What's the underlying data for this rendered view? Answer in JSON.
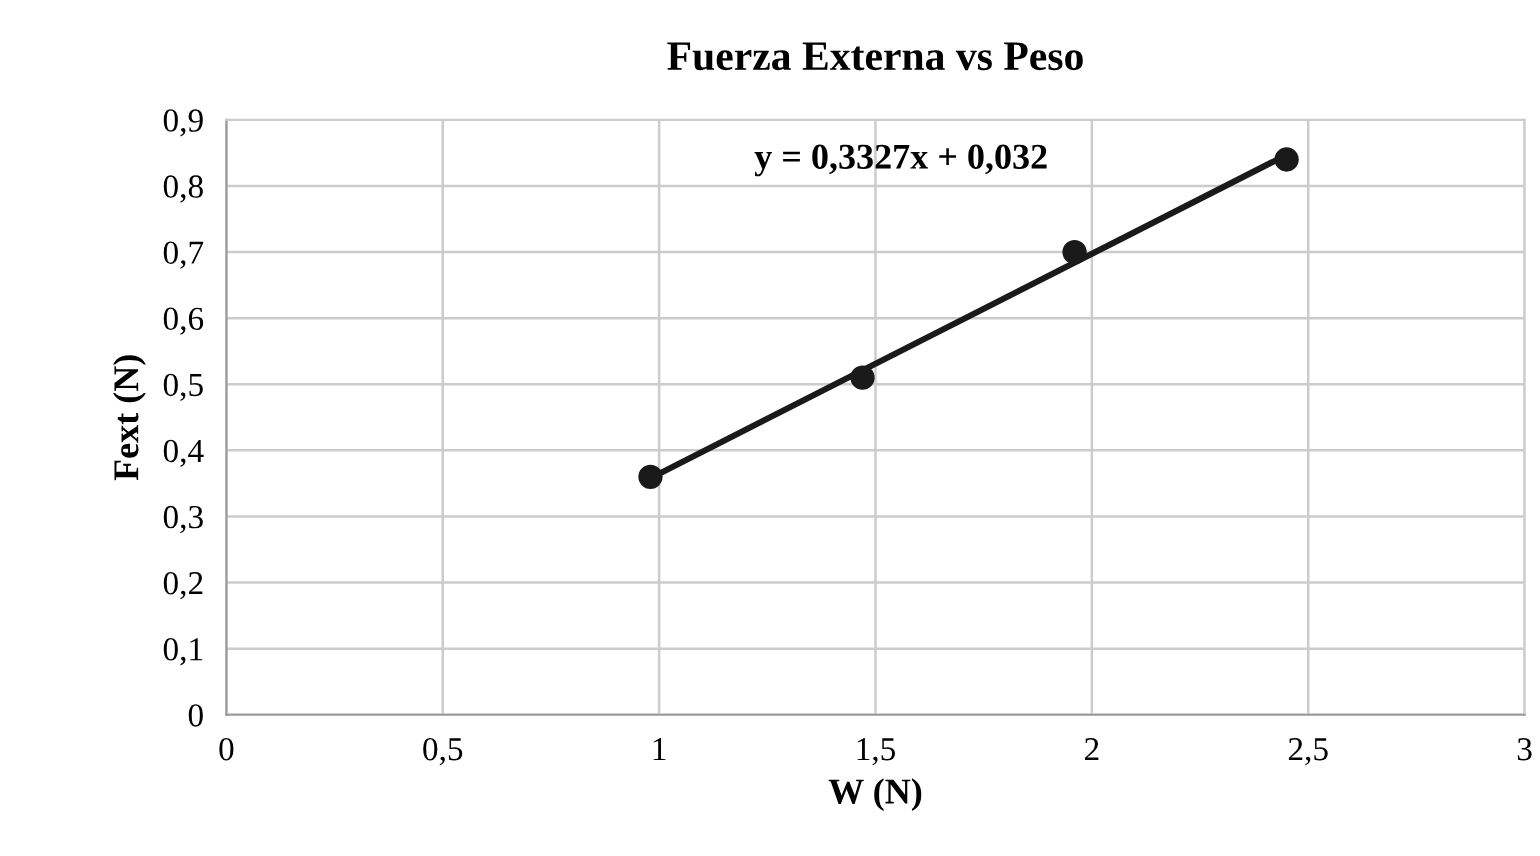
{
  "chart_data": {
    "type": "scatter",
    "title": "Fuerza Externa vs Peso",
    "xlabel": "W (N)",
    "ylabel": "Fext (N)",
    "series": [
      {
        "color": "#1a1a1a",
        "x": [
          0.98,
          1.47,
          1.96,
          2.45
        ],
        "values": [
          0.36,
          0.51,
          0.7,
          0.84
        ],
        "marker": "circle"
      },
      {
        "type": "line",
        "color": "#1a1a1a",
        "x": [
          0.98,
          2.45
        ],
        "values": [
          0.358,
          0.847
        ],
        "marker": "none"
      }
    ],
    "annotations": [
      "y = 0,3327x + 0,032"
    ],
    "xlim": [
      0,
      3
    ],
    "ylim": [
      0,
      0.9
    ],
    "xticks": [
      0,
      {
        "value": 0.5,
        "label": "0,5"
      },
      1,
      {
        "value": 1.5,
        "label": "1,5"
      },
      2,
      {
        "value": 2.5,
        "label": "2,5"
      },
      3
    ],
    "yticks": [
      0,
      {
        "value": 0.1,
        "label": "0,1"
      },
      {
        "value": 0.2,
        "label": "0,2"
      },
      {
        "value": 0.3,
        "label": "0,3"
      },
      {
        "value": 0.4,
        "label": "0,4"
      },
      {
        "value": 0.5,
        "label": "0,5"
      },
      {
        "value": 0.6,
        "label": "0,6"
      },
      {
        "value": 0.7,
        "label": "0,7"
      },
      {
        "value": 0.8,
        "label": "0,8"
      },
      {
        "value": 0.9,
        "label": "0,9"
      }
    ],
    "grid": true
  }
}
